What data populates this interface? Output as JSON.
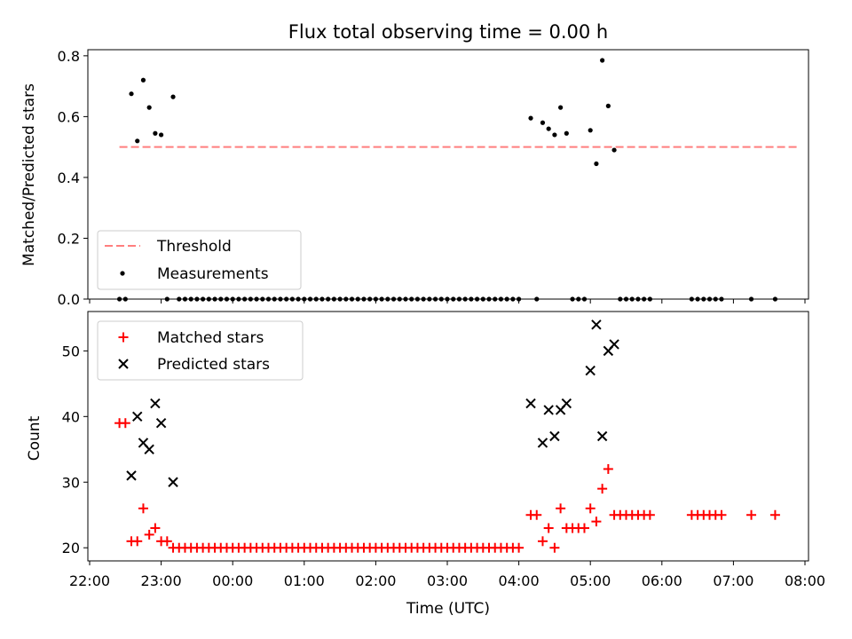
{
  "chart_data": [
    {
      "type": "scatter",
      "title": "Flux total observing time = 0.00 h",
      "ylabel": "Matched/Predicted stars",
      "ylim": [
        0,
        0.82
      ],
      "yticks": [
        "0.0",
        "0.2",
        "0.4",
        "0.6",
        "0.8"
      ],
      "yticks_values": [
        0,
        0.2,
        0.4,
        0.6,
        0.8
      ],
      "legend_position": "lower-left",
      "threshold": {
        "name": "Threshold",
        "value": 0.5,
        "x_start": "22:25",
        "x_end": "07:55",
        "color": "#ff7f7f",
        "style": "dashed"
      },
      "series": [
        {
          "name": "Measurements",
          "marker": "dot",
          "color": "#000000",
          "points": [
            [
              "22:25",
              0
            ],
            [
              "22:30",
              0
            ],
            [
              "22:35",
              0.675
            ],
            [
              "22:40",
              0.52
            ],
            [
              "22:45",
              0.72
            ],
            [
              "22:50",
              0.63
            ],
            [
              "22:55",
              0.545
            ],
            [
              "23:00",
              0.54
            ],
            [
              "23:05",
              0
            ],
            [
              "23:10",
              0.665
            ],
            [
              "23:15",
              0
            ],
            [
              "23:20",
              0
            ],
            [
              "23:25",
              0
            ],
            [
              "23:30",
              0
            ],
            [
              "23:35",
              0
            ],
            [
              "23:40",
              0
            ],
            [
              "23:45",
              0
            ],
            [
              "23:50",
              0
            ],
            [
              "23:55",
              0
            ],
            [
              "00:00",
              0
            ],
            [
              "00:05",
              0
            ],
            [
              "00:10",
              0
            ],
            [
              "00:15",
              0
            ],
            [
              "00:20",
              0
            ],
            [
              "00:25",
              0
            ],
            [
              "00:30",
              0
            ],
            [
              "00:35",
              0
            ],
            [
              "00:40",
              0
            ],
            [
              "00:45",
              0
            ],
            [
              "00:50",
              0
            ],
            [
              "00:55",
              0
            ],
            [
              "01:00",
              0
            ],
            [
              "01:05",
              0
            ],
            [
              "01:10",
              0
            ],
            [
              "01:15",
              0
            ],
            [
              "01:20",
              0
            ],
            [
              "01:25",
              0
            ],
            [
              "01:30",
              0
            ],
            [
              "01:35",
              0
            ],
            [
              "01:40",
              0
            ],
            [
              "01:45",
              0
            ],
            [
              "01:50",
              0
            ],
            [
              "01:55",
              0
            ],
            [
              "02:00",
              0
            ],
            [
              "02:05",
              0
            ],
            [
              "02:10",
              0
            ],
            [
              "02:15",
              0
            ],
            [
              "02:20",
              0
            ],
            [
              "02:25",
              0
            ],
            [
              "02:30",
              0
            ],
            [
              "02:35",
              0
            ],
            [
              "02:40",
              0
            ],
            [
              "02:45",
              0
            ],
            [
              "02:50",
              0
            ],
            [
              "02:55",
              0
            ],
            [
              "03:00",
              0
            ],
            [
              "03:05",
              0
            ],
            [
              "03:10",
              0
            ],
            [
              "03:15",
              0
            ],
            [
              "03:20",
              0
            ],
            [
              "03:25",
              0
            ],
            [
              "03:30",
              0
            ],
            [
              "03:35",
              0
            ],
            [
              "03:40",
              0
            ],
            [
              "03:45",
              0
            ],
            [
              "03:50",
              0
            ],
            [
              "03:55",
              0
            ],
            [
              "04:00",
              0
            ],
            [
              "04:10",
              0.595
            ],
            [
              "04:15",
              0
            ],
            [
              "04:20",
              0.58
            ],
            [
              "04:25",
              0.56
            ],
            [
              "04:30",
              0.54
            ],
            [
              "04:35",
              0.63
            ],
            [
              "04:40",
              0.545
            ],
            [
              "04:45",
              0
            ],
            [
              "04:50",
              0
            ],
            [
              "04:55",
              0
            ],
            [
              "05:00",
              0.555
            ],
            [
              "05:05",
              0.445
            ],
            [
              "05:10",
              0.785
            ],
            [
              "05:15",
              0.635
            ],
            [
              "05:20",
              0.49
            ],
            [
              "05:25",
              0
            ],
            [
              "05:30",
              0
            ],
            [
              "05:35",
              0
            ],
            [
              "05:40",
              0
            ],
            [
              "05:45",
              0
            ],
            [
              "05:50",
              0
            ],
            [
              "06:25",
              0
            ],
            [
              "06:30",
              0
            ],
            [
              "06:35",
              0
            ],
            [
              "06:40",
              0
            ],
            [
              "06:45",
              0
            ],
            [
              "06:50",
              0
            ],
            [
              "07:15",
              0
            ],
            [
              "07:35",
              0
            ]
          ]
        }
      ]
    },
    {
      "type": "scatter",
      "title": "",
      "xlabel": "Time (UTC)",
      "ylabel": "Count",
      "ylim": [
        18,
        56
      ],
      "yticks": [
        "20",
        "30",
        "40",
        "50"
      ],
      "yticks_values": [
        20,
        30,
        40,
        50
      ],
      "xticks": [
        "22:00",
        "23:00",
        "00:00",
        "01:00",
        "02:00",
        "03:00",
        "04:00",
        "05:00",
        "06:00",
        "07:00",
        "08:00"
      ],
      "legend_position": "upper-left",
      "series": [
        {
          "name": "Matched stars",
          "marker": "plus",
          "color": "#ff0000",
          "points": [
            [
              "22:25",
              39
            ],
            [
              "22:30",
              39
            ],
            [
              "22:35",
              21
            ],
            [
              "22:40",
              21
            ],
            [
              "22:45",
              26
            ],
            [
              "22:50",
              22
            ],
            [
              "22:55",
              23
            ],
            [
              "23:00",
              21
            ],
            [
              "23:05",
              21
            ],
            [
              "23:10",
              20
            ],
            [
              "23:15",
              20
            ],
            [
              "23:20",
              20
            ],
            [
              "23:25",
              20
            ],
            [
              "23:30",
              20
            ],
            [
              "23:35",
              20
            ],
            [
              "23:40",
              20
            ],
            [
              "23:45",
              20
            ],
            [
              "23:50",
              20
            ],
            [
              "23:55",
              20
            ],
            [
              "00:00",
              20
            ],
            [
              "00:05",
              20
            ],
            [
              "00:10",
              20
            ],
            [
              "00:15",
              20
            ],
            [
              "00:20",
              20
            ],
            [
              "00:25",
              20
            ],
            [
              "00:30",
              20
            ],
            [
              "00:35",
              20
            ],
            [
              "00:40",
              20
            ],
            [
              "00:45",
              20
            ],
            [
              "00:50",
              20
            ],
            [
              "00:55",
              20
            ],
            [
              "01:00",
              20
            ],
            [
              "01:05",
              20
            ],
            [
              "01:10",
              20
            ],
            [
              "01:15",
              20
            ],
            [
              "01:20",
              20
            ],
            [
              "01:25",
              20
            ],
            [
              "01:30",
              20
            ],
            [
              "01:35",
              20
            ],
            [
              "01:40",
              20
            ],
            [
              "01:45",
              20
            ],
            [
              "01:50",
              20
            ],
            [
              "01:55",
              20
            ],
            [
              "02:00",
              20
            ],
            [
              "02:05",
              20
            ],
            [
              "02:10",
              20
            ],
            [
              "02:15",
              20
            ],
            [
              "02:20",
              20
            ],
            [
              "02:25",
              20
            ],
            [
              "02:30",
              20
            ],
            [
              "02:35",
              20
            ],
            [
              "02:40",
              20
            ],
            [
              "02:45",
              20
            ],
            [
              "02:50",
              20
            ],
            [
              "02:55",
              20
            ],
            [
              "03:00",
              20
            ],
            [
              "03:05",
              20
            ],
            [
              "03:10",
              20
            ],
            [
              "03:15",
              20
            ],
            [
              "03:20",
              20
            ],
            [
              "03:25",
              20
            ],
            [
              "03:30",
              20
            ],
            [
              "03:35",
              20
            ],
            [
              "03:40",
              20
            ],
            [
              "03:45",
              20
            ],
            [
              "03:50",
              20
            ],
            [
              "03:55",
              20
            ],
            [
              "04:00",
              20
            ],
            [
              "04:10",
              25
            ],
            [
              "04:15",
              25
            ],
            [
              "04:20",
              21
            ],
            [
              "04:25",
              23
            ],
            [
              "04:30",
              20
            ],
            [
              "04:35",
              26
            ],
            [
              "04:40",
              23
            ],
            [
              "04:45",
              23
            ],
            [
              "04:50",
              23
            ],
            [
              "04:55",
              23
            ],
            [
              "05:00",
              26
            ],
            [
              "05:05",
              24
            ],
            [
              "05:10",
              29
            ],
            [
              "05:15",
              32
            ],
            [
              "05:20",
              25
            ],
            [
              "05:25",
              25
            ],
            [
              "05:30",
              25
            ],
            [
              "05:35",
              25
            ],
            [
              "05:40",
              25
            ],
            [
              "05:45",
              25
            ],
            [
              "05:50",
              25
            ],
            [
              "06:25",
              25
            ],
            [
              "06:30",
              25
            ],
            [
              "06:35",
              25
            ],
            [
              "06:40",
              25
            ],
            [
              "06:45",
              25
            ],
            [
              "06:50",
              25
            ],
            [
              "07:15",
              25
            ],
            [
              "07:35",
              25
            ]
          ]
        },
        {
          "name": "Predicted stars",
          "marker": "x",
          "color": "#000000",
          "points": [
            [
              "22:35",
              31
            ],
            [
              "22:40",
              40
            ],
            [
              "22:45",
              36
            ],
            [
              "22:50",
              35
            ],
            [
              "22:55",
              42
            ],
            [
              "23:00",
              39
            ],
            [
              "23:10",
              30
            ],
            [
              "04:10",
              42
            ],
            [
              "04:20",
              36
            ],
            [
              "04:25",
              41
            ],
            [
              "04:30",
              37
            ],
            [
              "04:35",
              41
            ],
            [
              "04:40",
              42
            ],
            [
              "05:00",
              47
            ],
            [
              "05:05",
              54
            ],
            [
              "05:10",
              37
            ],
            [
              "05:15",
              50
            ],
            [
              "05:20",
              51
            ]
          ]
        }
      ]
    }
  ]
}
